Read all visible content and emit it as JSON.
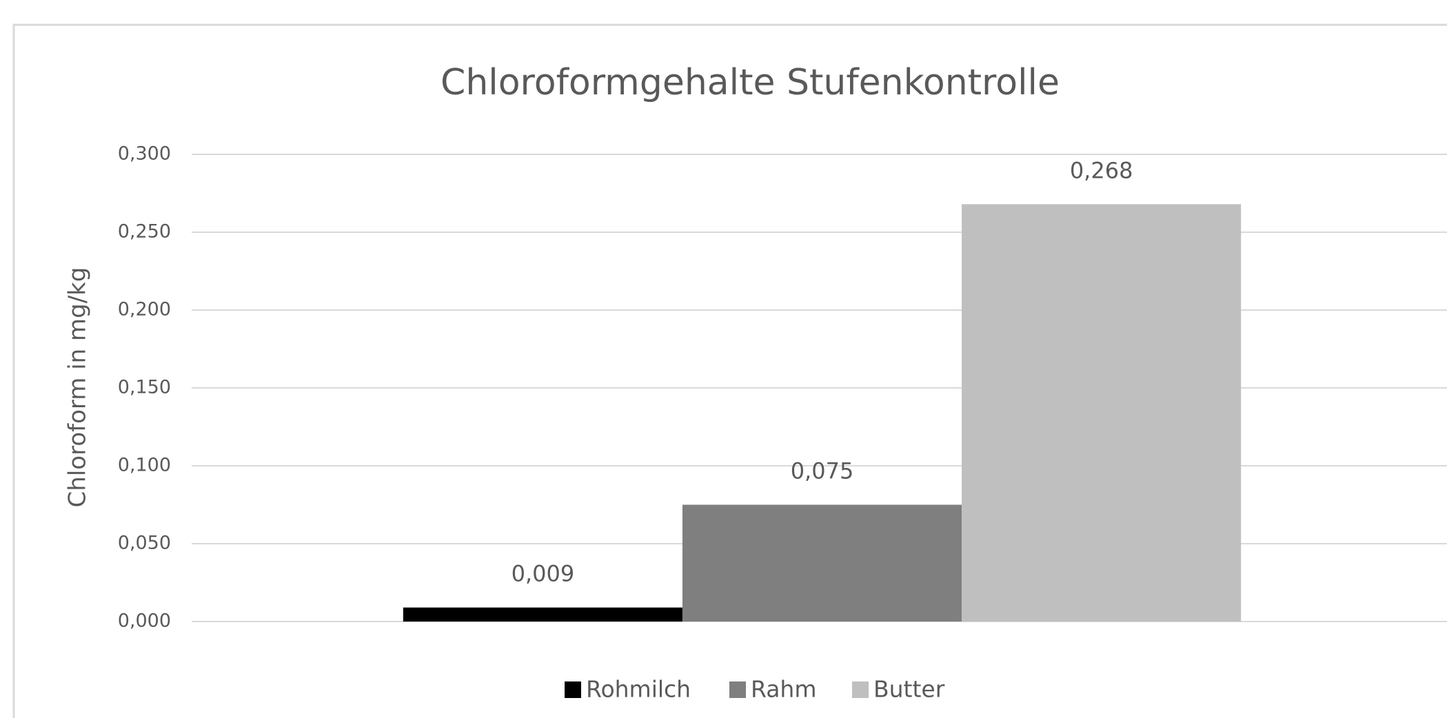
{
  "chart_data": {
    "type": "bar",
    "title": "Chloroformgehalte Stufenkontrolle",
    "y_label": "Chloroform in mg/kg",
    "categories": [
      null
    ],
    "series": [
      {
        "name": "Rohmilch",
        "color": "#000000",
        "values": [
          0.009
        ],
        "value_labels": [
          "0,009"
        ]
      },
      {
        "name": "Rahm",
        "color": "#7f7f7f",
        "values": [
          0.075
        ],
        "value_labels": [
          "0,075"
        ]
      },
      {
        "name": "Butter",
        "color": "#bfbfbf",
        "values": [
          0.268
        ],
        "value_labels": [
          "0,268"
        ]
      }
    ],
    "ylim": [
      0,
      0.3
    ],
    "yticks": [
      {
        "value": 0,
        "label": "0,000"
      },
      {
        "value": 0.05,
        "label": "0,050"
      },
      {
        "value": 0.1,
        "label": "0,100"
      },
      {
        "value": 0.15,
        "label": "0,150"
      },
      {
        "value": 0.2,
        "label": "0,200"
      },
      {
        "value": 0.25,
        "label": "0,250"
      },
      {
        "value": 0.3,
        "label": "0,300"
      }
    ],
    "grid": true,
    "legend": "bottom"
  }
}
